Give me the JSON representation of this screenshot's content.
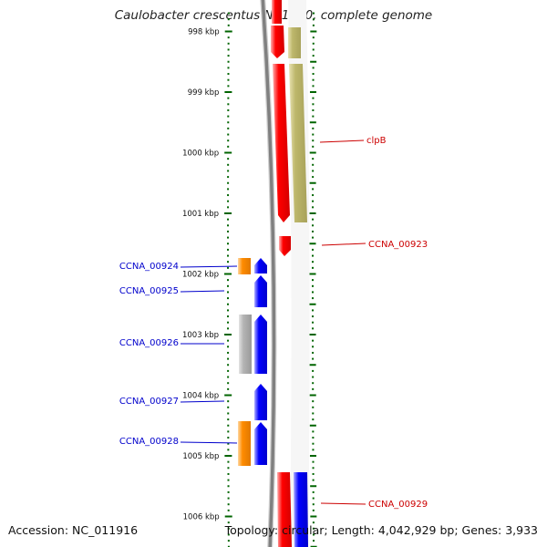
{
  "title": "Caulobacter crescentus NA1000, complete genome",
  "footer": {
    "accession": "Accession: NC_011916",
    "summary": "Topology: circular; Length: 4,042,929 bp; Genes: 3,933"
  },
  "scale": {
    "ticks": [
      {
        "label": "998 kbp",
        "kbp": 998
      },
      {
        "label": "999 kbp",
        "kbp": 999
      },
      {
        "label": "1000 kbp",
        "kbp": 1000
      },
      {
        "label": "1001 kbp",
        "kbp": 1001
      },
      {
        "label": "1002 kbp",
        "kbp": 1002
      },
      {
        "label": "1003 kbp",
        "kbp": 1003
      },
      {
        "label": "1004 kbp",
        "kbp": 1004
      },
      {
        "label": "1005 kbp",
        "kbp": 1005
      },
      {
        "label": "1006 kbp",
        "kbp": 1006
      }
    ]
  },
  "colors": {
    "forward_cds": "#ff0000",
    "reverse_cds": "#0000ff",
    "orange_feature": "#ff8c00",
    "olive_feature": "#bdb76b",
    "grey_feature": "#b0b0b0",
    "backbone": "#808080",
    "tick": "#006400"
  },
  "gene_labels": [
    {
      "name": "clpB",
      "color": "#cc0000"
    },
    {
      "name": "CCNA_00923",
      "color": "#cc0000"
    },
    {
      "name": "CCNA_00924",
      "color": "#0000cc"
    },
    {
      "name": "CCNA_00925",
      "color": "#0000cc"
    },
    {
      "name": "CCNA_00926",
      "color": "#0000cc"
    },
    {
      "name": "CCNA_00927",
      "color": "#0000cc"
    },
    {
      "name": "CCNA_00928",
      "color": "#0000cc"
    },
    {
      "name": "CCNA_00929",
      "color": "#cc0000"
    }
  ]
}
